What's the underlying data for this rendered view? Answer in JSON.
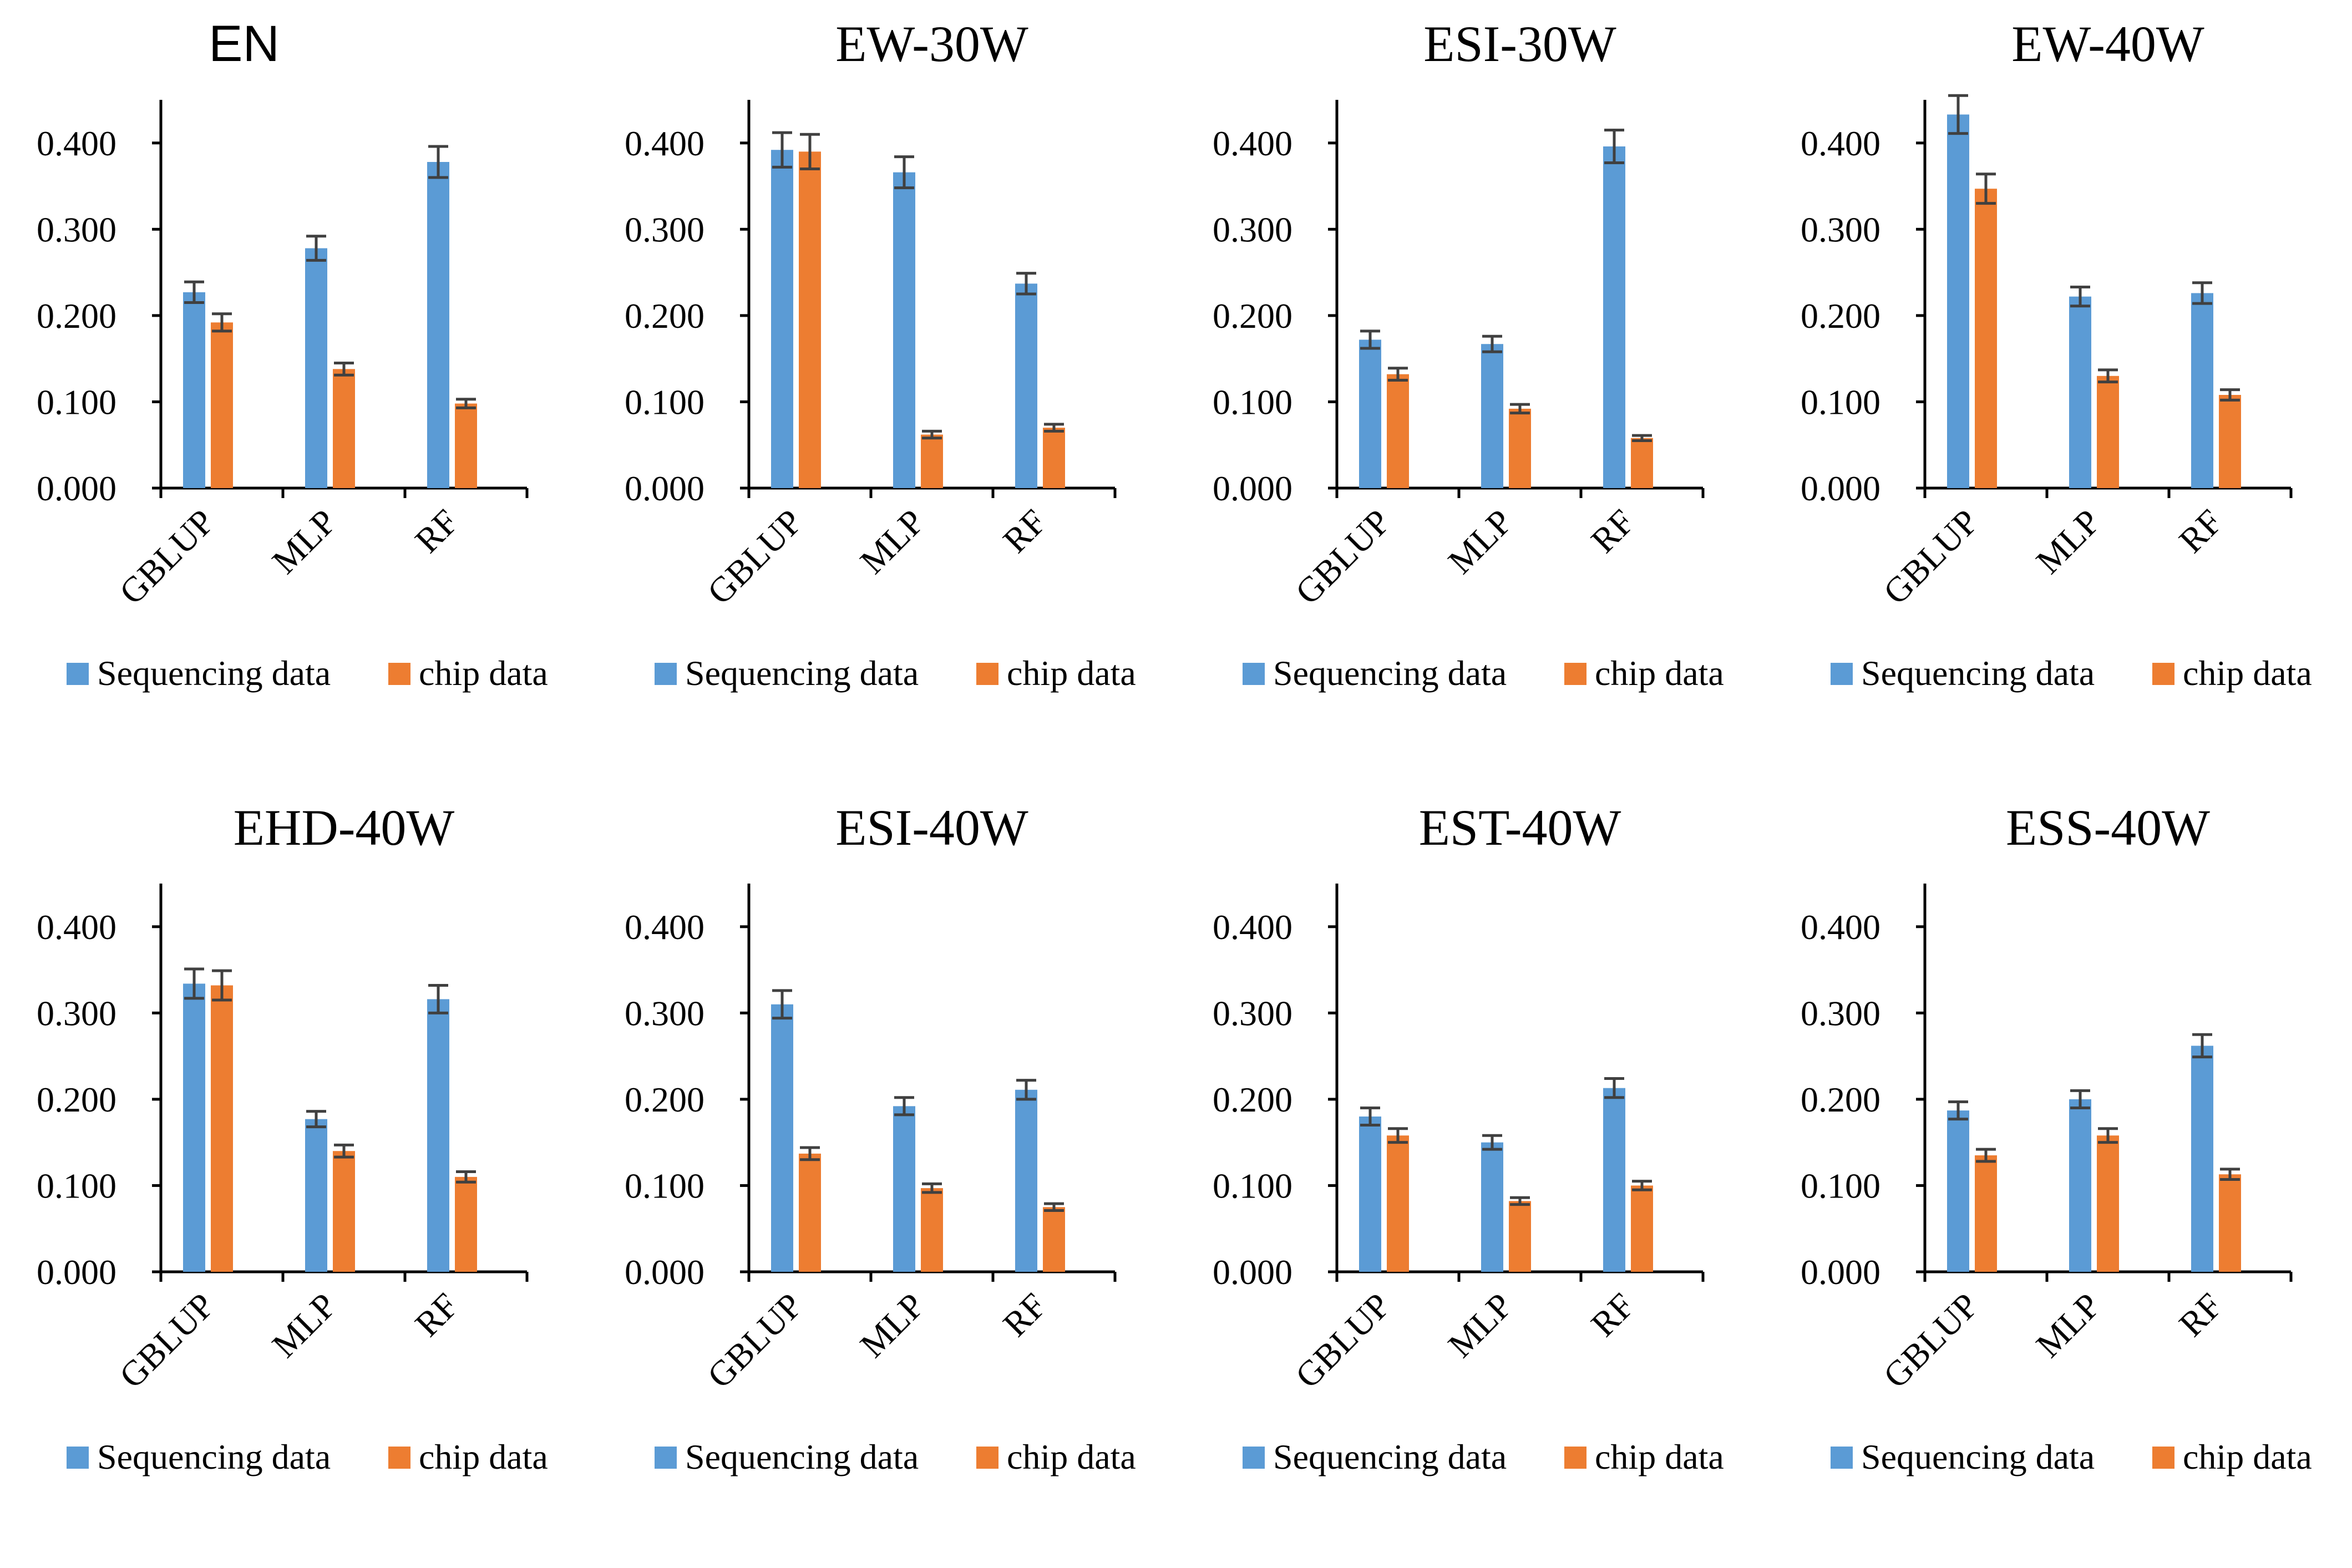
{
  "colors": {
    "seq": "#5B9BD5",
    "chip": "#ED7D31",
    "error": "#404040",
    "axis": "#000000"
  },
  "chart_data": [
    {
      "type": "bar",
      "title": "EN",
      "categories": [
        "GBLUP",
        "MLP",
        "RF"
      ],
      "ylim": [
        0,
        0.45
      ],
      "yticks": [
        "0.000",
        "0.100",
        "0.200",
        "0.300",
        "0.400"
      ],
      "legend_position": "bottom",
      "series": [
        {
          "name": "Sequencing data",
          "values": [
            0.227,
            0.278,
            0.378
          ],
          "errors": [
            0.012,
            0.014,
            0.018
          ]
        },
        {
          "name": "chip data",
          "values": [
            0.192,
            0.138,
            0.098
          ],
          "errors": [
            0.01,
            0.007,
            0.005
          ]
        }
      ]
    },
    {
      "type": "bar",
      "title": "EW-30W",
      "categories": [
        "GBLUP",
        "MLP",
        "RF"
      ],
      "ylim": [
        0,
        0.45
      ],
      "yticks": [
        "0.000",
        "0.100",
        "0.200",
        "0.300",
        "0.400"
      ],
      "legend_position": "bottom",
      "series": [
        {
          "name": "Sequencing data",
          "values": [
            0.392,
            0.366,
            0.237
          ],
          "errors": [
            0.02,
            0.018,
            0.012
          ]
        },
        {
          "name": "chip data",
          "values": [
            0.39,
            0.062,
            0.07
          ],
          "errors": [
            0.02,
            0.004,
            0.004
          ]
        }
      ]
    },
    {
      "type": "bar",
      "title": "ESI-30W",
      "categories": [
        "GBLUP",
        "MLP",
        "RF"
      ],
      "ylim": [
        0,
        0.45
      ],
      "yticks": [
        "0.000",
        "0.100",
        "0.200",
        "0.300",
        "0.400"
      ],
      "legend_position": "bottom",
      "series": [
        {
          "name": "Sequencing data",
          "values": [
            0.172,
            0.167,
            0.396
          ],
          "errors": [
            0.01,
            0.009,
            0.019
          ]
        },
        {
          "name": "chip data",
          "values": [
            0.132,
            0.092,
            0.058
          ],
          "errors": [
            0.007,
            0.005,
            0.003
          ]
        }
      ]
    },
    {
      "type": "bar",
      "title": "EW-40W",
      "categories": [
        "GBLUP",
        "MLP",
        "RF"
      ],
      "ylim": [
        0,
        0.45
      ],
      "yticks": [
        "0.000",
        "0.100",
        "0.200",
        "0.300",
        "0.400"
      ],
      "legend_position": "bottom",
      "series": [
        {
          "name": "Sequencing data",
          "values": [
            0.433,
            0.222,
            0.226
          ],
          "errors": [
            0.022,
            0.011,
            0.012
          ]
        },
        {
          "name": "chip data",
          "values": [
            0.347,
            0.13,
            0.108
          ],
          "errors": [
            0.017,
            0.007,
            0.006
          ]
        }
      ]
    },
    {
      "type": "bar",
      "title": "EHD-40W",
      "categories": [
        "GBLUP",
        "MLP",
        "RF"
      ],
      "ylim": [
        0,
        0.45
      ],
      "yticks": [
        "0.000",
        "0.100",
        "0.200",
        "0.300",
        "0.400"
      ],
      "legend_position": "bottom",
      "series": [
        {
          "name": "Sequencing data",
          "values": [
            0.334,
            0.177,
            0.316
          ],
          "errors": [
            0.017,
            0.009,
            0.016
          ]
        },
        {
          "name": "chip data",
          "values": [
            0.332,
            0.14,
            0.11
          ],
          "errors": [
            0.017,
            0.007,
            0.006
          ]
        }
      ]
    },
    {
      "type": "bar",
      "title": "ESI-40W",
      "categories": [
        "GBLUP",
        "MLP",
        "RF"
      ],
      "ylim": [
        0,
        0.45
      ],
      "yticks": [
        "0.000",
        "0.100",
        "0.200",
        "0.300",
        "0.400"
      ],
      "legend_position": "bottom",
      "series": [
        {
          "name": "Sequencing data",
          "values": [
            0.31,
            0.192,
            0.211
          ],
          "errors": [
            0.016,
            0.01,
            0.011
          ]
        },
        {
          "name": "chip data",
          "values": [
            0.137,
            0.097,
            0.075
          ],
          "errors": [
            0.007,
            0.005,
            0.004
          ]
        }
      ]
    },
    {
      "type": "bar",
      "title": "EST-40W",
      "categories": [
        "GBLUP",
        "MLP",
        "RF"
      ],
      "ylim": [
        0,
        0.45
      ],
      "yticks": [
        "0.000",
        "0.100",
        "0.200",
        "0.300",
        "0.400"
      ],
      "legend_position": "bottom",
      "series": [
        {
          "name": "Sequencing data",
          "values": [
            0.18,
            0.15,
            0.213
          ],
          "errors": [
            0.01,
            0.008,
            0.011
          ]
        },
        {
          "name": "chip data",
          "values": [
            0.158,
            0.082,
            0.1
          ],
          "errors": [
            0.008,
            0.004,
            0.005
          ]
        }
      ]
    },
    {
      "type": "bar",
      "title": "ESS-40W",
      "categories": [
        "GBLUP",
        "MLP",
        "RF"
      ],
      "ylim": [
        0,
        0.45
      ],
      "yticks": [
        "0.000",
        "0.100",
        "0.200",
        "0.300",
        "0.400"
      ],
      "legend_position": "bottom",
      "series": [
        {
          "name": "Sequencing data",
          "values": [
            0.187,
            0.2,
            0.262
          ],
          "errors": [
            0.01,
            0.01,
            0.013
          ]
        },
        {
          "name": "chip data",
          "values": [
            0.135,
            0.158,
            0.113
          ],
          "errors": [
            0.007,
            0.008,
            0.006
          ]
        }
      ]
    }
  ]
}
